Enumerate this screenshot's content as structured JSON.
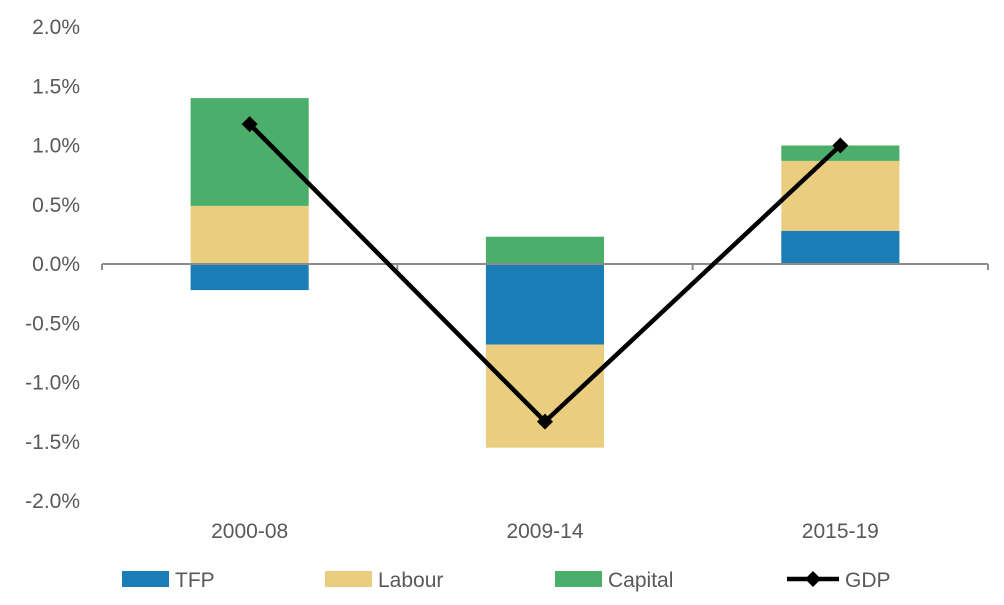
{
  "chart_data": {
    "type": "bar",
    "stacked": true,
    "title": "",
    "xlabel": "",
    "ylabel": "",
    "categories": [
      "2000-08",
      "2009-14",
      "2015-19"
    ],
    "ylim": [
      -2.0,
      2.0
    ],
    "yticks": [
      -2.0,
      -1.5,
      -1.0,
      -0.5,
      0.0,
      0.5,
      1.0,
      1.5,
      2.0
    ],
    "ytick_labels": [
      "-2.0%",
      "-1.5%",
      "-1.0%",
      "-0.5%",
      "0.0%",
      "0.5%",
      "1.0%",
      "1.5%",
      "2.0%"
    ],
    "grid": false,
    "legend_position": "bottom",
    "series": [
      {
        "name": "TFP",
        "kind": "bar",
        "color": "#1A7DB5",
        "values": [
          -0.22,
          -0.68,
          0.28
        ]
      },
      {
        "name": "Labour",
        "kind": "bar",
        "color": "#EBCD80",
        "values": [
          0.49,
          -0.87,
          0.59
        ]
      },
      {
        "name": "Capital",
        "kind": "bar",
        "color": "#4BAE6A",
        "values": [
          0.91,
          0.23,
          0.13
        ]
      },
      {
        "name": "GDP",
        "kind": "line",
        "color": "#000000",
        "marker": "diamond",
        "values": [
          1.18,
          -1.33,
          1.0
        ]
      }
    ]
  }
}
